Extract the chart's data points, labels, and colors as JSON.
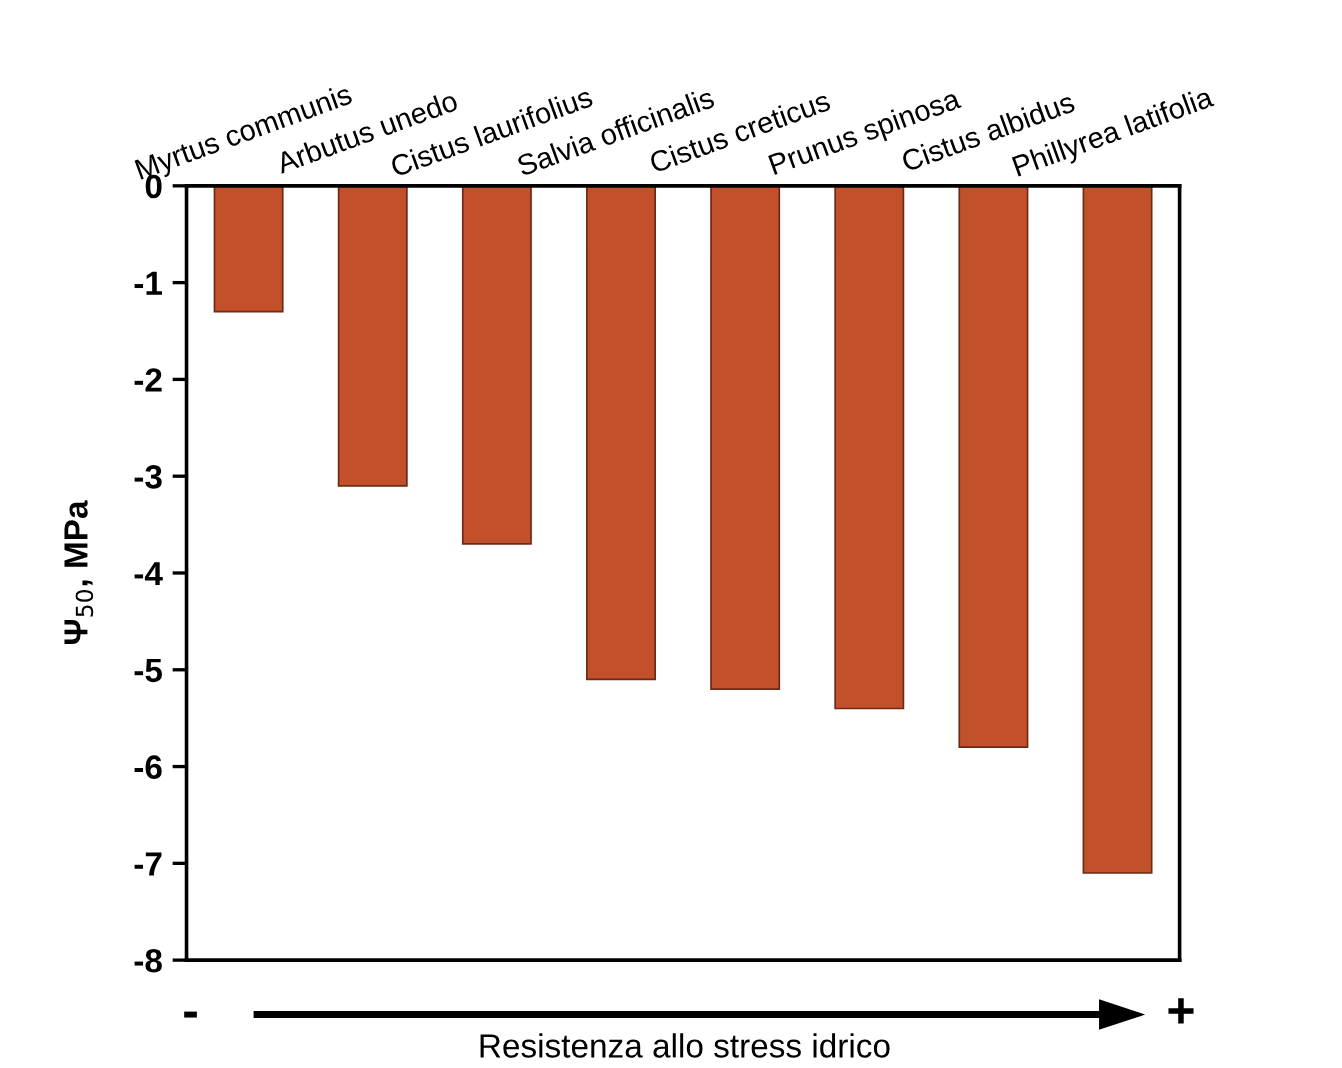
{
  "chart_data": {
    "type": "bar",
    "categories": [
      "Myrtus communis",
      "Arbutus unedo",
      "Cistus laurifolius",
      "Salvia officinalis",
      "Cistus creticus",
      "Prunus spinosa",
      "Cistus albidus",
      "Phillyrea latifolia"
    ],
    "values": [
      -1.3,
      -3.1,
      -3.7,
      -5.1,
      -5.2,
      -5.4,
      -5.8,
      -7.1
    ],
    "color": "#c1502b",
    "ylim": [
      -8,
      0
    ],
    "yticks": [
      -8,
      -7,
      -6,
      -5,
      -4,
      -3,
      -2,
      -1,
      0
    ],
    "ylabel": "Ψ$_{50}$, MPa",
    "xlabel": "Resistenza allo stress idrico",
    "annotations": [
      "-",
      "+"
    ],
    "grid": false
  }
}
